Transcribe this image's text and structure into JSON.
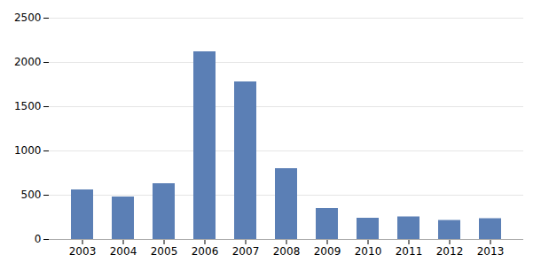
{
  "chart_data": {
    "type": "bar",
    "categories": [
      "2003",
      "2004",
      "2005",
      "2006",
      "2007",
      "2008",
      "2009",
      "2010",
      "2011",
      "2012",
      "2013"
    ],
    "values": [
      560,
      480,
      630,
      2120,
      1780,
      800,
      350,
      240,
      255,
      215,
      235
    ],
    "color": "#5b7fb5",
    "ylim": [
      0,
      2500
    ],
    "yticks": [
      0,
      500,
      1000,
      1500,
      2000,
      2500
    ],
    "grid": true
  }
}
